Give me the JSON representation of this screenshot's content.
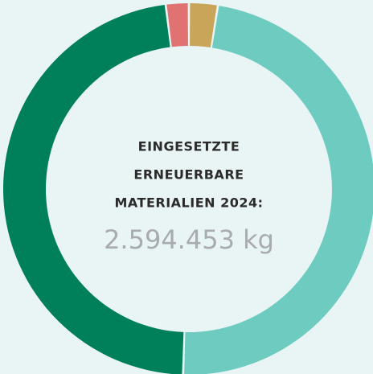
{
  "chart_data": {
    "type": "donut",
    "title_lines": [
      "EINGESETZTE",
      "ERNEUERBARE",
      "MATERIALIEN 2024:"
    ],
    "center_value": "2.594.453 kg",
    "categories": [
      null,
      null,
      null,
      null
    ],
    "values": [
      2.5,
      48,
      47.5,
      2
    ],
    "colors": [
      "#c9a55a",
      "#6dcbc0",
      "#00805a",
      "#e07272"
    ]
  }
}
